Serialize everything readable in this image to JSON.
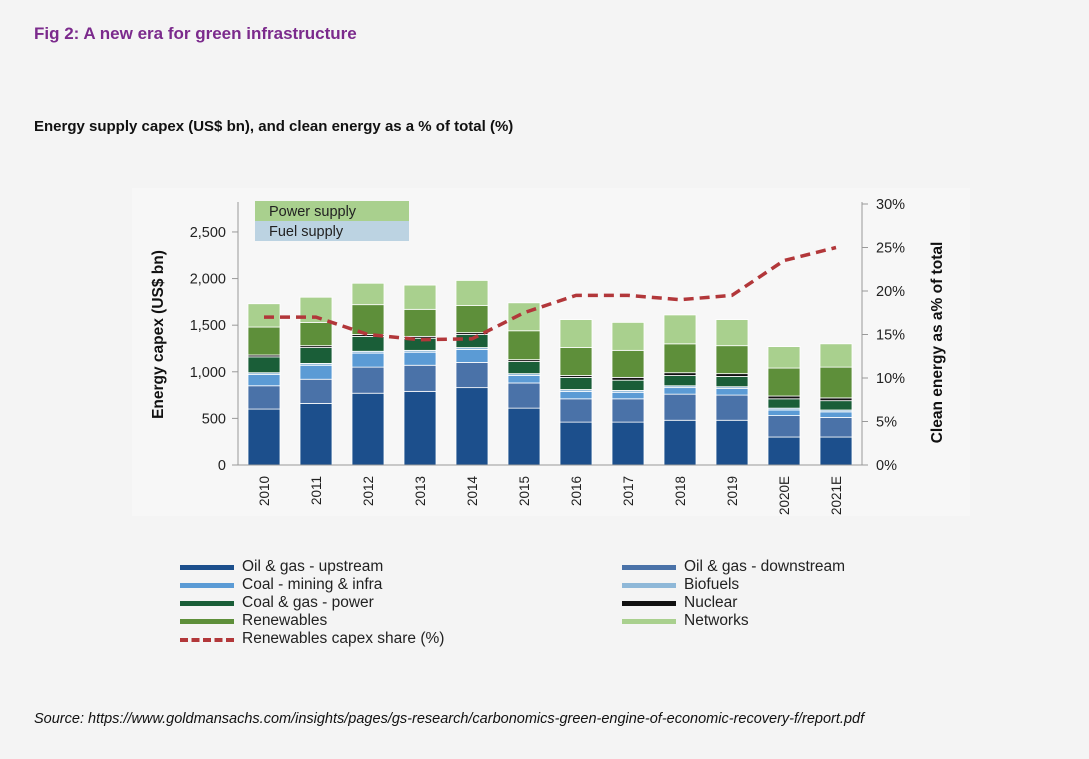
{
  "figure": {
    "title": "Fig 2: A new era for green infrastructure",
    "subtitle": "Energy supply capex (US$ bn), and clean energy as a % of total (%)",
    "source": "Source: https://www.goldmansachs.com/insights/pages/gs-research/carbonomics-green-engine-of-economic-recovery-f/report.pdf"
  },
  "chart_data": {
    "type": "bar",
    "stacked": true,
    "categories": [
      "2010",
      "2011",
      "2012",
      "2013",
      "2014",
      "2015",
      "2016",
      "2017",
      "2018",
      "2019",
      "2020E",
      "2021E"
    ],
    "ylabel": "Energy capex (US$ bn)",
    "y2label": "Clean energy as a% of total",
    "ylim": [
      0,
      2800
    ],
    "y2lim": [
      0,
      30
    ],
    "yticks": [
      "0",
      "500",
      "1,000",
      "1,500",
      "2,000",
      "2,500"
    ],
    "y2ticks": [
      "0%",
      "5%",
      "10%",
      "15%",
      "20%",
      "25%",
      "30%"
    ],
    "annotations": [
      {
        "text": "Power supply",
        "color": "#a9d08e"
      },
      {
        "text": "Fuel supply",
        "color": "#bcd3e2"
      }
    ],
    "series": [
      {
        "name": "Oil & gas - upstream",
        "color": "#1c4f8c",
        "values": [
          600,
          660,
          770,
          790,
          830,
          610,
          460,
          460,
          480,
          480,
          300,
          300
        ]
      },
      {
        "name": "Oil & gas - downstream",
        "color": "#4a72a8",
        "values": [
          250,
          260,
          280,
          280,
          270,
          270,
          250,
          250,
          280,
          270,
          230,
          210
        ]
      },
      {
        "name": "Coal - mining & infra",
        "color": "#5b9bd5",
        "values": [
          120,
          150,
          150,
          140,
          140,
          80,
          80,
          70,
          70,
          70,
          60,
          60
        ]
      },
      {
        "name": "Biofuels",
        "color": "#8fb8d8",
        "values": [
          20,
          20,
          20,
          20,
          20,
          20,
          20,
          20,
          20,
          20,
          20,
          20
        ]
      },
      {
        "name": "Coal & gas - power",
        "color": "#1a5e38",
        "values": [
          170,
          170,
          160,
          130,
          140,
          130,
          130,
          110,
          110,
          110,
          100,
          100
        ]
      },
      {
        "name": "Nuclear",
        "color": "#111111",
        "values": [
          20,
          20,
          20,
          20,
          20,
          20,
          20,
          30,
          30,
          30,
          30,
          30
        ]
      },
      {
        "name": "Renewables",
        "color": "#5e8f3a",
        "values": [
          300,
          250,
          320,
          290,
          290,
          310,
          300,
          290,
          310,
          300,
          300,
          330
        ]
      },
      {
        "name": "Networks",
        "color": "#a9d08e",
        "values": [
          250,
          270,
          230,
          260,
          270,
          300,
          300,
          300,
          310,
          280,
          230,
          250
        ]
      }
    ],
    "line": {
      "name": "Renewables capex share (%)",
      "color": "#b2373a",
      "values": [
        17.0,
        17.0,
        15.0,
        14.4,
        14.5,
        17.5,
        19.5,
        19.5,
        19.0,
        19.5,
        23.5,
        25.0
      ]
    }
  }
}
